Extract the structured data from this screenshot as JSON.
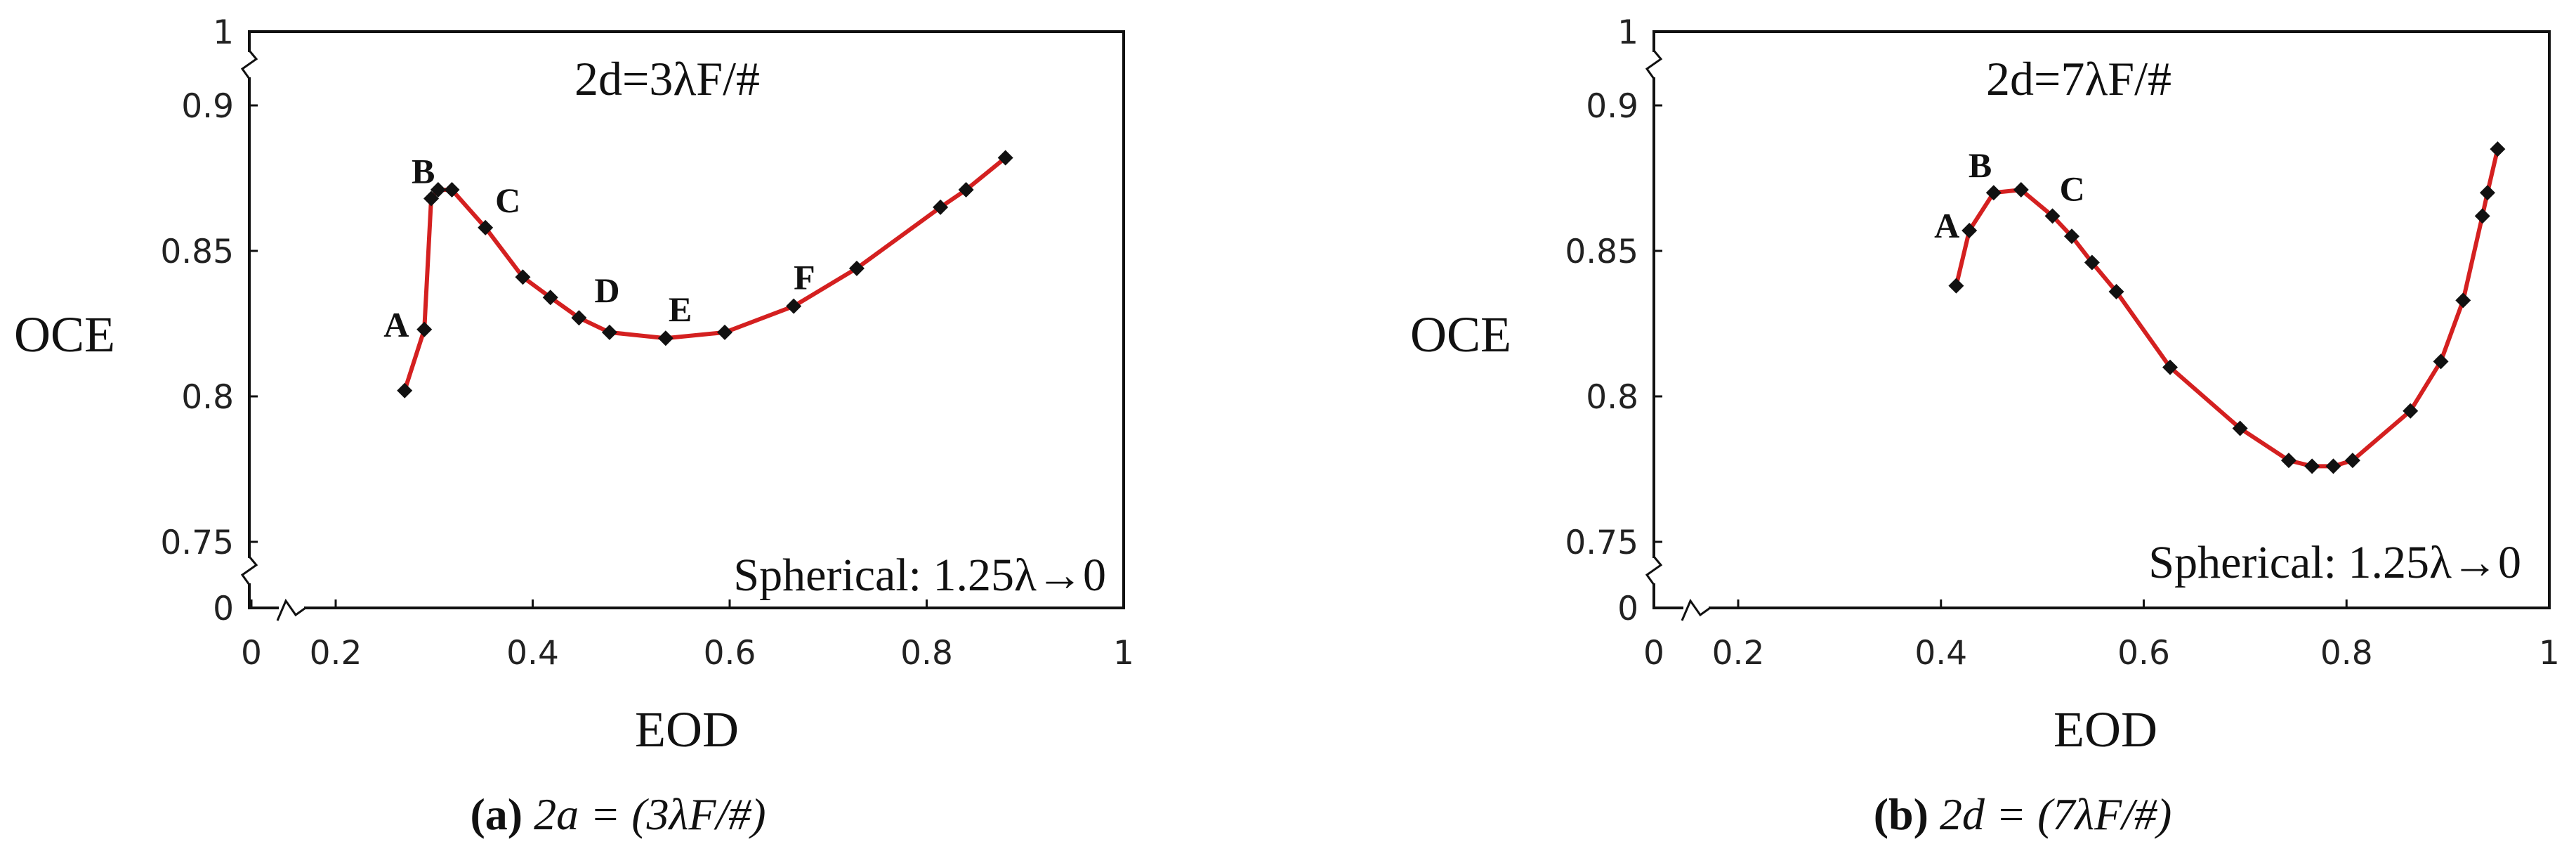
{
  "chart_data": [
    {
      "type": "line",
      "title": "2d=3λF/#",
      "xlabel": "EOD",
      "ylabel": "OCE",
      "annotation": "Spherical: 1.25λ→0",
      "xlim": [
        0,
        1
      ],
      "ylim": [
        0.75,
        1
      ],
      "axis_breaks": "x between 0 and 0.2; y between 0 and 0.75 and between 0.9 and 1",
      "x_ticks": [
        "0",
        "0.2",
        "0.4",
        "0.6",
        "0.8",
        "1"
      ],
      "y_ticks": [
        "0",
        "0.75",
        "0.8",
        "0.85",
        "0.9",
        "1"
      ],
      "line_color": "#d42020",
      "marker": "diamond",
      "x": [
        0.27,
        0.29,
        0.297,
        0.304,
        0.318,
        0.352,
        0.39,
        0.418,
        0.447,
        0.478,
        0.535,
        0.595,
        0.665,
        0.729,
        0.814,
        0.84,
        0.88
      ],
      "y": [
        0.802,
        0.823,
        0.868,
        0.871,
        0.871,
        0.858,
        0.841,
        0.834,
        0.827,
        0.822,
        0.82,
        0.822,
        0.831,
        0.844,
        0.865,
        0.871,
        0.882
      ],
      "point_labels": [
        {
          "text": "A",
          "x": 0.29,
          "y": 0.823
        },
        {
          "text": "B",
          "x": 0.297,
          "y": 0.868
        },
        {
          "text": "C",
          "x": 0.352,
          "y": 0.858
        },
        {
          "text": "D",
          "x": 0.447,
          "y": 0.827
        },
        {
          "text": "E",
          "x": 0.535,
          "y": 0.82
        },
        {
          "text": "F",
          "x": 0.665,
          "y": 0.831
        }
      ]
    },
    {
      "type": "line",
      "title": "2d=7λF/#",
      "xlabel": "EOD",
      "ylabel": "OCE",
      "annotation": "Spherical: 1.25λ→0",
      "xlim": [
        0,
        1
      ],
      "ylim": [
        0.75,
        1
      ],
      "axis_breaks": "x between 0 and 0.2; y between 0 and 0.75 and between 0.9 and 1",
      "x_ticks": [
        "0",
        "0.2",
        "0.4",
        "0.6",
        "0.8",
        "1"
      ],
      "y_ticks": [
        "0",
        "0.75",
        "0.8",
        "0.85",
        "0.9",
        "1"
      ],
      "line_color": "#d42020",
      "marker": "diamond",
      "x": [
        0.415,
        0.428,
        0.452,
        0.479,
        0.51,
        0.529,
        0.549,
        0.573,
        0.626,
        0.695,
        0.743,
        0.766,
        0.787,
        0.806,
        0.863,
        0.893,
        0.915,
        0.934,
        0.939,
        0.949
      ],
      "y": [
        0.838,
        0.857,
        0.87,
        0.871,
        0.862,
        0.855,
        0.846,
        0.836,
        0.81,
        0.789,
        0.778,
        0.776,
        0.776,
        0.778,
        0.795,
        0.812,
        0.833,
        0.862,
        0.87,
        0.885
      ],
      "point_labels": [
        {
          "text": "A",
          "x": 0.428,
          "y": 0.857
        },
        {
          "text": "B",
          "x": 0.452,
          "y": 0.87
        },
        {
          "text": "C",
          "x": 0.51,
          "y": 0.862
        }
      ]
    }
  ],
  "captions": [
    {
      "label": "(a)",
      "text": " 2a = (3λF/#)"
    },
    {
      "label": "(b)",
      "text": " 2d = (7λF/#)"
    }
  ]
}
